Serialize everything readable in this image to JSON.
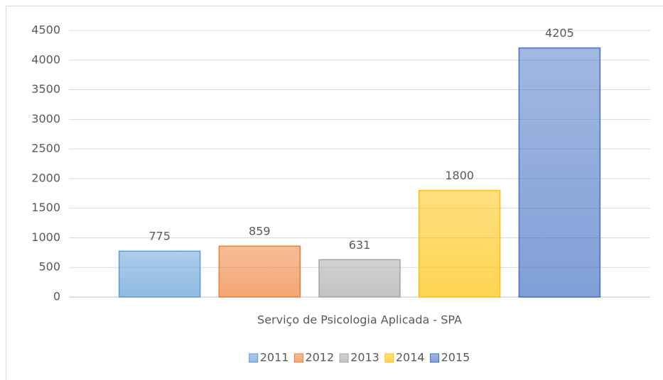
{
  "chart_data": {
    "type": "bar",
    "categories": [
      "Serviço de Psicologia Aplicada - SPA"
    ],
    "series": [
      {
        "name": "2011",
        "color": "#5b9bd5",
        "values": [
          775
        ]
      },
      {
        "name": "2012",
        "color": "#ed7d31",
        "values": [
          859
        ]
      },
      {
        "name": "2013",
        "color": "#a5a5a5",
        "values": [
          631
        ]
      },
      {
        "name": "2014",
        "color": "#ffc000",
        "values": [
          1800
        ]
      },
      {
        "name": "2015",
        "color": "#4472c4",
        "values": [
          4205
        ]
      }
    ],
    "ylim": [
      0,
      4500
    ],
    "yticks": [
      0,
      500,
      1000,
      1500,
      2000,
      2500,
      3000,
      3500,
      4000,
      4500
    ],
    "grid": true,
    "legend": "bottom",
    "data_labels": true
  }
}
